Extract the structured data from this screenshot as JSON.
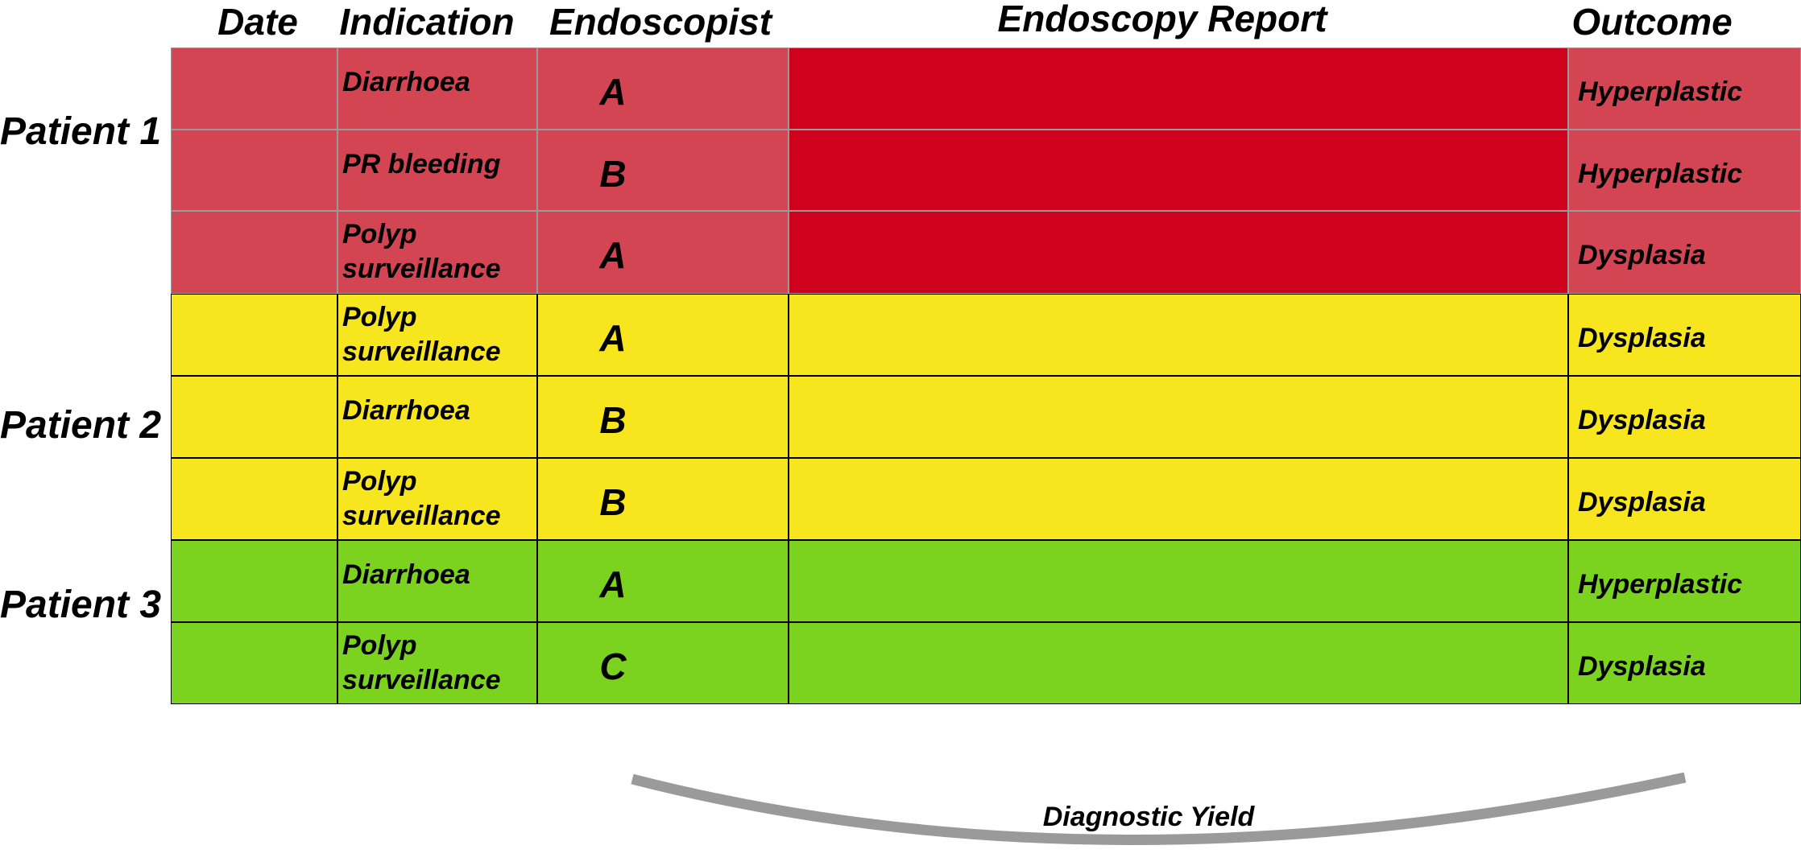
{
  "headers": {
    "date": "Date",
    "indication": "Indication",
    "endoscopist": "Endoscopist",
    "report": "Endoscopy Report",
    "outcome": "Outcome"
  },
  "patients": [
    {
      "label": "Patient 1",
      "color": "#d34553",
      "report_color": "#cf021e"
    },
    {
      "label": "Patient 2",
      "color": "#f7e51e",
      "report_color": "#f7e51e"
    },
    {
      "label": "Patient 3",
      "color": "#7bd320",
      "report_color": "#7bd320"
    }
  ],
  "rows": [
    {
      "patient": "Patient 1",
      "indication": [
        "Diarrhoea"
      ],
      "endoscopist": "A",
      "outcome": "Hyperplastic"
    },
    {
      "patient": "Patient 1",
      "indication": [
        "PR bleeding"
      ],
      "endoscopist": "B",
      "outcome": "Hyperplastic"
    },
    {
      "patient": "Patient 1",
      "indication": [
        "Polyp",
        "surveillance"
      ],
      "endoscopist": "A",
      "outcome": "Dysplasia"
    },
    {
      "patient": "Patient 2",
      "indication": [
        "Polyp",
        "surveillance"
      ],
      "endoscopist": "A",
      "outcome": "Dysplasia"
    },
    {
      "patient": "Patient 2",
      "indication": [
        "Diarrhoea"
      ],
      "endoscopist": "B",
      "outcome": "Dysplasia"
    },
    {
      "patient": "Patient 2",
      "indication": [
        "Polyp",
        "surveillance"
      ],
      "endoscopist": "B",
      "outcome": "Dysplasia"
    },
    {
      "patient": "Patient 3",
      "indication": [
        "Diarrhoea"
      ],
      "endoscopist": "A",
      "outcome": "Hyperplastic"
    },
    {
      "patient": "Patient 3",
      "indication": [
        "Polyp",
        "surveillance"
      ],
      "endoscopist": "C",
      "outcome": "Dysplasia"
    }
  ],
  "brace_label": "Diagnostic Yield",
  "brace_color": "#9a9a9a"
}
